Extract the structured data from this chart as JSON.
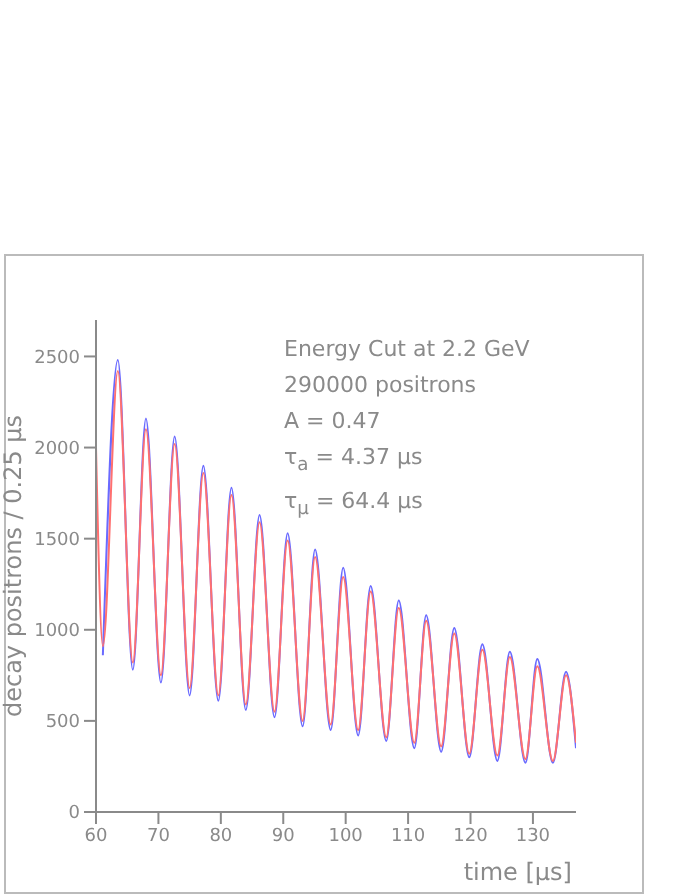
{
  "chart_data": {
    "type": "line",
    "xlabel": "time [μs]",
    "ylabel": "decay positrons / 0.25 μs",
    "annotations": [
      "Energy Cut at 2.2 GeV",
      "290000 positrons",
      "A = 0.47",
      "τ$_{a}$ = 4.37 μs",
      "τ$_{μ}$ = 64.4 μs"
    ],
    "x": [
      60,
      61.1,
      63.5,
      65.9,
      68.0,
      70.4,
      72.6,
      75.0,
      77.2,
      79.6,
      81.7,
      84.0,
      86.2,
      88.6,
      90.7,
      93.1,
      95.1,
      97.6,
      99.6,
      102.0,
      104.0,
      106.5,
      108.5,
      111.0,
      112.9,
      115.3,
      117.4,
      119.8,
      121.9,
      124.3,
      126.3,
      128.8,
      130.7,
      133.2,
      135.3,
      136.9
    ],
    "series": [
      {
        "color": "#6a6aff",
        "values": [
          null,
          860,
          2480,
          780,
          2160,
          710,
          2060,
          640,
          1900,
          610,
          1780,
          560,
          1630,
          520,
          1530,
          470,
          1440,
          450,
          1340,
          420,
          1240,
          390,
          1160,
          350,
          1080,
          330,
          1010,
          300,
          920,
          280,
          880,
          270,
          840,
          270,
          770,
          350
        ]
      },
      {
        "color": "#ff7070",
        "values": [
          2000,
          910,
          2420,
          820,
          2100,
          750,
          2020,
          680,
          1860,
          640,
          1740,
          590,
          1590,
          550,
          1490,
          500,
          1400,
          480,
          1290,
          450,
          1210,
          410,
          1120,
          380,
          1050,
          360,
          980,
          320,
          890,
          310,
          850,
          290,
          800,
          280,
          750,
          380
        ]
      }
    ],
    "xlim": [
      60,
      136.9
    ],
    "xticks": [
      60,
      70,
      80,
      90,
      100,
      110,
      120,
      130
    ],
    "ylim": [
      0,
      2700
    ],
    "yticks": [
      0,
      500,
      1000,
      1500,
      2000,
      2500
    ],
    "grid": false,
    "legend": false,
    "marker": "none",
    "line_style": "solid"
  }
}
